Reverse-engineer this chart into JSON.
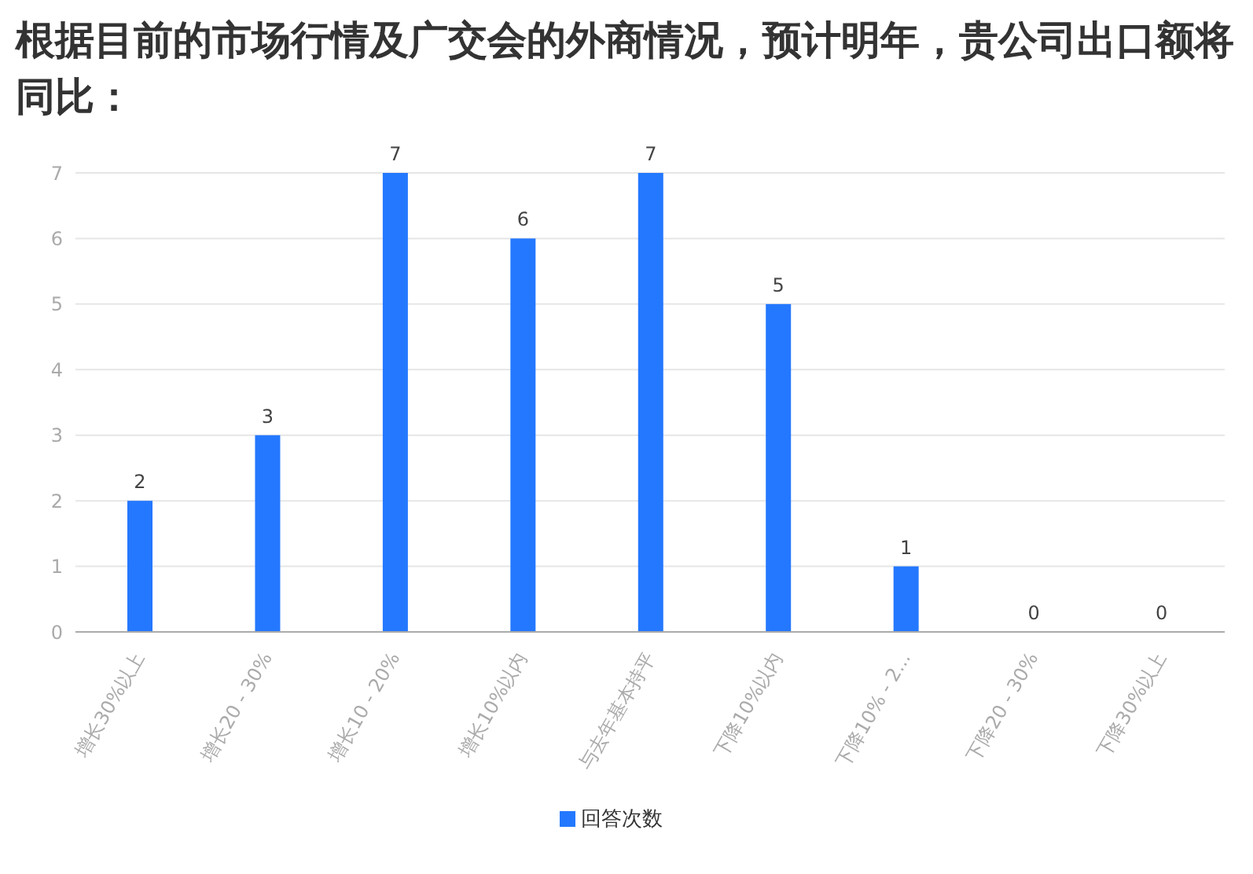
{
  "chart_data": {
    "type": "bar",
    "title": "根据目前的市场行情及广交会的外商情况，预计明年，贵公司出口额将同比：",
    "categories": [
      "增长30%以上",
      "增长20 - 30%",
      "增长10 - 20%",
      "增长10%以内",
      "与去年基本持平",
      "下降10%以内",
      "下降10% - 2...",
      "下降20 - 30%",
      "下降30%以上"
    ],
    "series": [
      {
        "name": "回答次数",
        "color": "#2478ff",
        "values": [
          2,
          3,
          7,
          6,
          7,
          5,
          1,
          0,
          0
        ]
      }
    ],
    "ylim": [
      0,
      7
    ],
    "yticks": [
      0,
      1,
      2,
      3,
      4,
      5,
      6,
      7
    ],
    "grid": "y",
    "legend": "bottom",
    "data_labels": true
  }
}
